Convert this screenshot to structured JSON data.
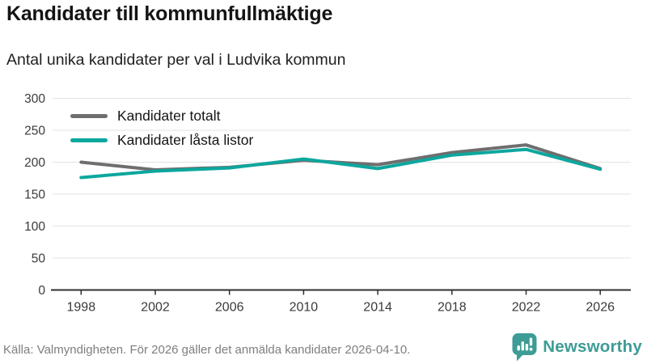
{
  "header": {
    "title": "Kandidater till kommunfullmäktige",
    "subtitle": "Antal unika kandidater per val i Ludvika kommun"
  },
  "chart_data": {
    "type": "line",
    "title": "Kandidater till kommunfullmäktige",
    "subtitle": "Antal unika kandidater per val i Ludvika kommun",
    "categories": [
      "1998",
      "2002",
      "2006",
      "2010",
      "2014",
      "2018",
      "2022",
      "2026"
    ],
    "series": [
      {
        "name": "Kandidater totalt",
        "color": "#6e6e6e",
        "values": [
          200,
          188,
          192,
          203,
          196,
          215,
          227,
          190
        ]
      },
      {
        "name": "Kandidater låsta listor",
        "color": "#0ca79e",
        "values": [
          176,
          186,
          191,
          205,
          190,
          211,
          220,
          189
        ]
      }
    ],
    "xlabel": "",
    "ylabel": "",
    "ylim": [
      0,
      300
    ],
    "yticks": [
      0,
      50,
      100,
      150,
      200,
      250,
      300
    ],
    "grid": "horizontal-only",
    "legend_position": "inside-top-left"
  },
  "footer": {
    "source": "Källa: Valmyndigheten. För 2026 gäller det anmälda kandidater 2026-04-10.",
    "logo_text": "Newsworthy",
    "logo_icon": "newsworthy-chart-bubble-icon"
  },
  "colors": {
    "accent_teal": "#0ca79e",
    "logo_teal": "#3d9c96",
    "line_gray": "#6e6e6e",
    "grid": "#e3e3e3",
    "axis": "#2f2f2f",
    "text_dark": "#141414",
    "text_muted": "#7e7e7e"
  }
}
